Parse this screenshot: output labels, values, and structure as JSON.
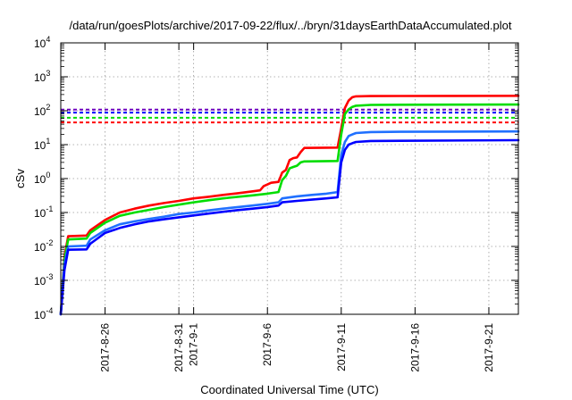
{
  "chart_data": {
    "type": "line",
    "title": "/data/run/goesPlots/archive/2017-09-22/flux/../bryn/31daysEarthDataAccumulated.plot",
    "xlabel": "Coordinated Universal Time (UTC)",
    "ylabel": "cSv",
    "yscale": "log",
    "ylim": [
      0.0001,
      10000
    ],
    "xlim": [
      "2017-08-23",
      "2017-09-23"
    ],
    "grid": true,
    "yticks": [
      {
        "value": 0.0001,
        "base": "10",
        "exp": "-4"
      },
      {
        "value": 0.001,
        "base": "10",
        "exp": "-3"
      },
      {
        "value": 0.01,
        "base": "10",
        "exp": "-2"
      },
      {
        "value": 0.1,
        "base": "10",
        "exp": "-1"
      },
      {
        "value": 1,
        "base": "10",
        "exp": "0"
      },
      {
        "value": 10,
        "base": "10",
        "exp": "1"
      },
      {
        "value": 100,
        "base": "10",
        "exp": "2"
      },
      {
        "value": 1000,
        "base": "10",
        "exp": "3"
      },
      {
        "value": 10000,
        "base": "10",
        "exp": "4"
      }
    ],
    "xticks": [
      {
        "date": "2017-08-26",
        "label": "2017-8-26"
      },
      {
        "date": "2017-08-31",
        "label": "2017-8-31"
      },
      {
        "date": "2017-09-01",
        "label": "2017-9-1"
      },
      {
        "date": "2017-09-06",
        "label": "2017-9-6"
      },
      {
        "date": "2017-09-11",
        "label": "2017-9-11"
      },
      {
        "date": "2017-09-16",
        "label": "2017-9-16"
      },
      {
        "date": "2017-09-21",
        "label": "2017-9-21"
      }
    ],
    "thresholds": [
      {
        "color": "#ff0000",
        "value": 45
      },
      {
        "color": "#00dd00",
        "value": 62
      },
      {
        "color": "#0000ff",
        "value": 88
      },
      {
        "color": "#7000c0",
        "value": 108
      }
    ],
    "series": [
      {
        "color": "#ff0000",
        "points": [
          [
            "2017-08-23",
            0.0001
          ],
          [
            "2017-08-23 06:00",
            0.005
          ],
          [
            "2017-08-23 12:00",
            0.02
          ],
          [
            "2017-08-24 18:00",
            0.021
          ],
          [
            "2017-08-25",
            0.03
          ],
          [
            "2017-08-26",
            0.06
          ],
          [
            "2017-08-27",
            0.1
          ],
          [
            "2017-08-28",
            0.13
          ],
          [
            "2017-08-29",
            0.16
          ],
          [
            "2017-08-30",
            0.19
          ],
          [
            "2017-08-31",
            0.22
          ],
          [
            "2017-09-01",
            0.26
          ],
          [
            "2017-09-02",
            0.29
          ],
          [
            "2017-09-03",
            0.33
          ],
          [
            "2017-09-04",
            0.37
          ],
          [
            "2017-09-05",
            0.42
          ],
          [
            "2017-09-05 12:00",
            0.45
          ],
          [
            "2017-09-05 18:00",
            0.6
          ],
          [
            "2017-09-06 06:00",
            0.75
          ],
          [
            "2017-09-06 18:00",
            0.8
          ],
          [
            "2017-09-07",
            1.5
          ],
          [
            "2017-09-07 06:00",
            1.8
          ],
          [
            "2017-09-07 12:00",
            3.5
          ],
          [
            "2017-09-07 18:00",
            4.0
          ],
          [
            "2017-09-08",
            4.2
          ],
          [
            "2017-09-08 06:00",
            6
          ],
          [
            "2017-09-08 12:00",
            8
          ],
          [
            "2017-09-10 18:00",
            8.2
          ],
          [
            "2017-09-11",
            30
          ],
          [
            "2017-09-11 06:00",
            120
          ],
          [
            "2017-09-11 12:00",
            200
          ],
          [
            "2017-09-11 18:00",
            250
          ],
          [
            "2017-09-12",
            265
          ],
          [
            "2017-09-13",
            270
          ],
          [
            "2017-09-15",
            272
          ],
          [
            "2017-09-23",
            275
          ]
        ]
      },
      {
        "color": "#00dd00",
        "points": [
          [
            "2017-08-23",
            0.0001
          ],
          [
            "2017-08-23 06:00",
            0.004
          ],
          [
            "2017-08-23 12:00",
            0.016
          ],
          [
            "2017-08-24 18:00",
            0.017
          ],
          [
            "2017-08-25",
            0.025
          ],
          [
            "2017-08-26",
            0.05
          ],
          [
            "2017-08-27",
            0.08
          ],
          [
            "2017-08-28",
            0.1
          ],
          [
            "2017-08-29",
            0.12
          ],
          [
            "2017-08-30",
            0.145
          ],
          [
            "2017-08-31",
            0.17
          ],
          [
            "2017-09-01",
            0.2
          ],
          [
            "2017-09-02",
            0.23
          ],
          [
            "2017-09-03",
            0.26
          ],
          [
            "2017-09-04",
            0.29
          ],
          [
            "2017-09-05",
            0.32
          ],
          [
            "2017-09-06",
            0.36
          ],
          [
            "2017-09-06 18:00",
            0.4
          ],
          [
            "2017-09-07",
            0.9
          ],
          [
            "2017-09-07 06:00",
            1.2
          ],
          [
            "2017-09-07 12:00",
            2.0
          ],
          [
            "2017-09-07 18:00",
            2.2
          ],
          [
            "2017-09-08",
            2.4
          ],
          [
            "2017-09-08 06:00",
            3.0
          ],
          [
            "2017-09-08 12:00",
            3.2
          ],
          [
            "2017-09-10 18:00",
            3.3
          ],
          [
            "2017-09-11",
            20
          ],
          [
            "2017-09-11 06:00",
            80
          ],
          [
            "2017-09-11 12:00",
            110
          ],
          [
            "2017-09-11 18:00",
            130
          ],
          [
            "2017-09-12",
            140
          ],
          [
            "2017-09-13",
            148
          ],
          [
            "2017-09-15",
            150
          ],
          [
            "2017-09-23",
            152
          ]
        ]
      },
      {
        "color": "#2070ff",
        "points": [
          [
            "2017-08-23",
            0.0001
          ],
          [
            "2017-08-23 06:00",
            0.003
          ],
          [
            "2017-08-23 12:00",
            0.01
          ],
          [
            "2017-08-24 18:00",
            0.0105
          ],
          [
            "2017-08-25",
            0.016
          ],
          [
            "2017-08-26",
            0.03
          ],
          [
            "2017-08-27",
            0.045
          ],
          [
            "2017-08-28",
            0.055
          ],
          [
            "2017-08-29",
            0.065
          ],
          [
            "2017-08-30",
            0.075
          ],
          [
            "2017-08-31",
            0.09
          ],
          [
            "2017-09-01",
            0.1
          ],
          [
            "2017-09-02",
            0.115
          ],
          [
            "2017-09-03",
            0.13
          ],
          [
            "2017-09-04",
            0.145
          ],
          [
            "2017-09-05",
            0.16
          ],
          [
            "2017-09-06",
            0.18
          ],
          [
            "2017-09-06 18:00",
            0.2
          ],
          [
            "2017-09-07",
            0.26
          ],
          [
            "2017-09-08",
            0.3
          ],
          [
            "2017-09-09",
            0.33
          ],
          [
            "2017-09-10",
            0.36
          ],
          [
            "2017-09-10 18:00",
            0.4
          ],
          [
            "2017-09-11",
            5
          ],
          [
            "2017-09-11 06:00",
            12
          ],
          [
            "2017-09-11 12:00",
            18
          ],
          [
            "2017-09-11 18:00",
            20
          ],
          [
            "2017-09-12",
            22
          ],
          [
            "2017-09-13",
            23.5
          ],
          [
            "2017-09-15",
            24
          ],
          [
            "2017-09-23",
            24.5
          ]
        ]
      },
      {
        "color": "#0000ff",
        "points": [
          [
            "2017-08-23",
            0.0001
          ],
          [
            "2017-08-23 06:00",
            0.002
          ],
          [
            "2017-08-23 12:00",
            0.008
          ],
          [
            "2017-08-24 18:00",
            0.0082
          ],
          [
            "2017-08-25",
            0.012
          ],
          [
            "2017-08-26",
            0.025
          ],
          [
            "2017-08-27",
            0.035
          ],
          [
            "2017-08-28",
            0.045
          ],
          [
            "2017-08-29",
            0.055
          ],
          [
            "2017-08-30",
            0.063
          ],
          [
            "2017-08-31",
            0.072
          ],
          [
            "2017-09-01",
            0.082
          ],
          [
            "2017-09-02",
            0.093
          ],
          [
            "2017-09-03",
            0.105
          ],
          [
            "2017-09-04",
            0.118
          ],
          [
            "2017-09-05",
            0.13
          ],
          [
            "2017-09-06",
            0.145
          ],
          [
            "2017-09-06 18:00",
            0.16
          ],
          [
            "2017-09-07",
            0.2
          ],
          [
            "2017-09-08",
            0.22
          ],
          [
            "2017-09-09",
            0.24
          ],
          [
            "2017-09-10",
            0.26
          ],
          [
            "2017-09-10 18:00",
            0.28
          ],
          [
            "2017-09-11",
            3
          ],
          [
            "2017-09-11 06:00",
            7
          ],
          [
            "2017-09-11 12:00",
            10
          ],
          [
            "2017-09-11 18:00",
            11
          ],
          [
            "2017-09-12",
            12
          ],
          [
            "2017-09-13",
            12.8
          ],
          [
            "2017-09-15",
            13
          ],
          [
            "2017-09-23",
            13.5
          ]
        ]
      }
    ]
  }
}
